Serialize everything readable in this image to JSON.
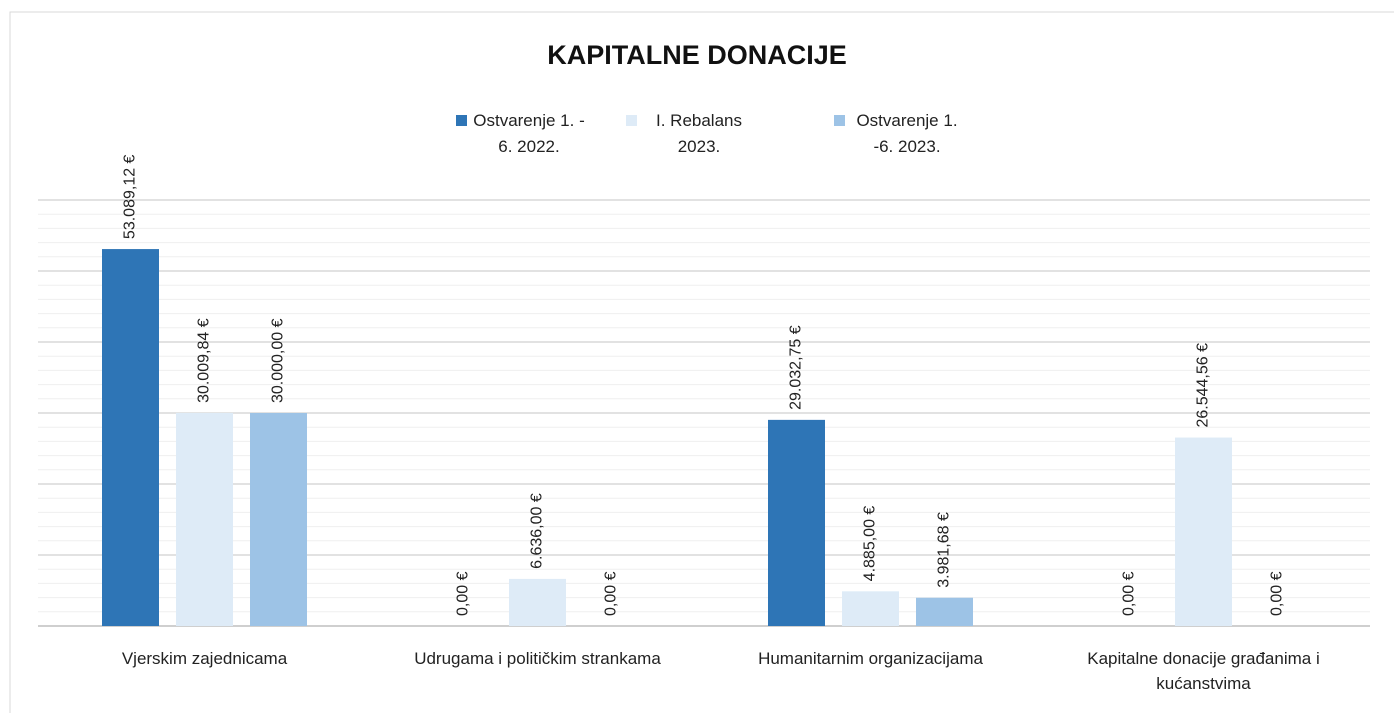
{
  "chart_data": {
    "type": "bar",
    "title": "KAPITALNE DONACIJE",
    "categories": [
      "Vjerskim zajednicama",
      "Udrugama i političkim strankama",
      "Humanitarnim organizacijama",
      "Kapitalne donacije građanima i kućanstvima"
    ],
    "series": [
      {
        "name": "Ostvarenje 1. - 6. 2022.",
        "color": "#2e75b6",
        "values": [
          53089.12,
          0,
          29032.75,
          0
        ],
        "value_labels": [
          "53.089,12 €",
          "0,00 €",
          "29.032,75 €",
          "0,00 €"
        ]
      },
      {
        "name": "I. Rebalans 2023.",
        "color": "#deebf7",
        "values": [
          30009.84,
          6636,
          4885,
          26544.56
        ],
        "value_labels": [
          "30.009,84 €",
          "6.636,00 €",
          "4.885,00 €",
          "26.544,56 €"
        ]
      },
      {
        "name": "Ostvarenje 1. -6. 2023.",
        "color": "#9dc3e6",
        "values": [
          30000,
          0,
          3981.68,
          0
        ],
        "value_labels": [
          "30.000,00 €",
          "0,00 €",
          "3.981,68 €",
          "0,00 €"
        ]
      }
    ],
    "ylim": [
      0,
      60000
    ],
    "yticks": [
      0,
      10000,
      20000,
      30000,
      40000,
      50000,
      60000
    ],
    "yminorticks": [
      2000,
      4000,
      6000,
      8000,
      12000,
      14000,
      16000,
      18000,
      22000,
      24000,
      26000,
      28000,
      32000,
      34000,
      36000,
      38000,
      42000,
      44000,
      46000,
      48000,
      52000,
      54000,
      56000,
      58000
    ],
    "grid": true,
    "legend": "top"
  }
}
